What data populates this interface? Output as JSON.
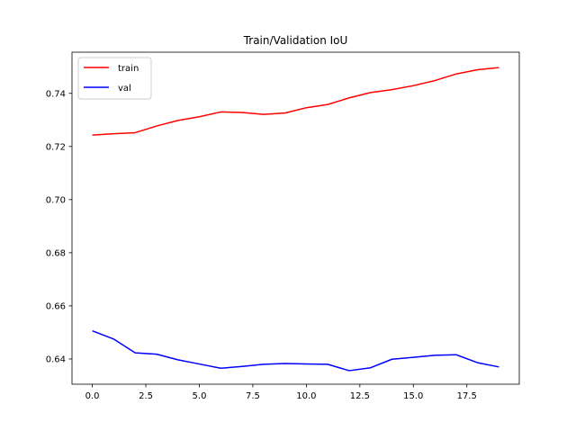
{
  "chart_data": {
    "type": "line",
    "title": "Train/Validation IoU",
    "xlabel": "",
    "ylabel": "",
    "xlim": [
      -0.95,
      19.95
    ],
    "ylim": [
      0.6305,
      0.7555
    ],
    "x": [
      0,
      1,
      2,
      3,
      4,
      5,
      6,
      7,
      8,
      9,
      10,
      11,
      12,
      13,
      14,
      15,
      16,
      17,
      18,
      19
    ],
    "xticks": [
      0.0,
      2.5,
      5.0,
      7.5,
      10.0,
      12.5,
      15.0,
      17.5
    ],
    "xtick_labels": [
      "0.0",
      "2.5",
      "5.0",
      "7.5",
      "10.0",
      "12.5",
      "15.0",
      "17.5"
    ],
    "yticks": [
      0.64,
      0.66,
      0.68,
      0.7,
      0.72,
      0.74
    ],
    "ytick_labels": [
      "0.64",
      "0.66",
      "0.68",
      "0.70",
      "0.72",
      "0.74"
    ],
    "grid": false,
    "legend_position": "upper-left",
    "series": [
      {
        "name": "train",
        "color": "#ff0000",
        "values": [
          0.7243,
          0.7248,
          0.7252,
          0.7277,
          0.7298,
          0.7312,
          0.733,
          0.7328,
          0.7321,
          0.7326,
          0.7346,
          0.7358,
          0.7383,
          0.7403,
          0.7414,
          0.7429,
          0.7448,
          0.7473,
          0.7489,
          0.7497
        ]
      },
      {
        "name": "val",
        "color": "#0000ff",
        "values": [
          0.6506,
          0.6475,
          0.6423,
          0.6418,
          0.6397,
          0.6381,
          0.6365,
          0.6372,
          0.638,
          0.6383,
          0.6381,
          0.638,
          0.6356,
          0.6367,
          0.6399,
          0.6406,
          0.6414,
          0.6416,
          0.6386,
          0.637
        ]
      }
    ]
  }
}
